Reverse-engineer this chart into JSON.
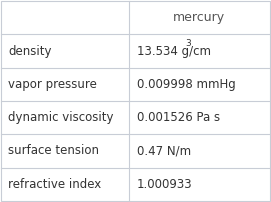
{
  "title": "mercury",
  "rows": [
    {
      "property": "density",
      "value": "13.534 g/cm",
      "superscript": "3"
    },
    {
      "property": "vapor pressure",
      "value": "0.009998 mmHg",
      "superscript": ""
    },
    {
      "property": "dynamic viscosity",
      "value": "0.001526 Pa s",
      "superscript": ""
    },
    {
      "property": "surface tension",
      "value": "0.47 N/m",
      "superscript": ""
    },
    {
      "property": "refractive index",
      "value": "1.000933",
      "superscript": ""
    }
  ],
  "col_split": 0.475,
  "background_color": "#ffffff",
  "border_color": "#c8cdd6",
  "header_text_color": "#555555",
  "cell_text_color": "#333333",
  "font_size": 8.5,
  "header_font_size": 9.0,
  "superscript_font_size": 6.5
}
